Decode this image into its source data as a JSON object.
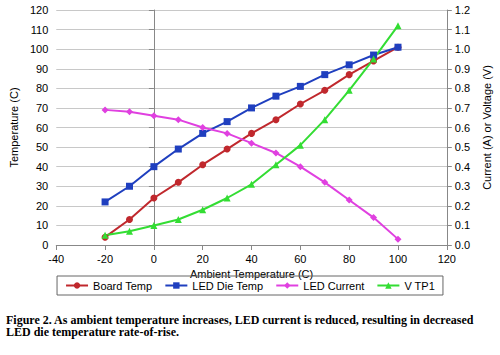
{
  "chart_data": {
    "type": "line",
    "x_label": "Ambient Temperature (C)",
    "y_label": "Temperature (C)",
    "y2_label": "Current (A) or Voltage (V)",
    "annotations": [
      "Figure 2. As ambient temperature increases, LED current is reduced, resulting in decreased LED die temperature rate-of-rise."
    ],
    "x": [
      -20,
      -10,
      0,
      10,
      20,
      30,
      40,
      50,
      60,
      70,
      80,
      90,
      100
    ],
    "series": [
      {
        "name": "Board Temp",
        "color": "#c0282d",
        "marker": "circle",
        "axis": "y",
        "values": [
          4,
          13,
          24,
          32,
          41,
          49,
          57,
          64,
          72,
          79,
          87,
          94,
          101
        ]
      },
      {
        "name": "LED Die Temp",
        "color": "#1f3fbf",
        "marker": "square",
        "axis": "y",
        "values": [
          22,
          30,
          40,
          49,
          57,
          63,
          70,
          76,
          81,
          87,
          92,
          97,
          101
        ]
      },
      {
        "name": "LED Current",
        "color": "#e040e0",
        "marker": "diamond",
        "axis": "y2",
        "values": [
          0.69,
          0.68,
          0.66,
          0.64,
          0.6,
          0.57,
          0.52,
          0.47,
          0.4,
          0.32,
          0.23,
          0.14,
          0.03
        ]
      },
      {
        "name": "V TP1",
        "color": "#33dd33",
        "marker": "triangle",
        "axis": "y2",
        "values": [
          0.05,
          0.07,
          0.1,
          0.13,
          0.18,
          0.24,
          0.31,
          0.41,
          0.51,
          0.64,
          0.79,
          0.95,
          1.12
        ]
      }
    ],
    "xlim": [
      -40,
      120
    ],
    "xticks": [
      -40,
      -20,
      0,
      20,
      40,
      60,
      80,
      100,
      120
    ],
    "ylim": [
      0,
      120
    ],
    "yticks": [
      0,
      10,
      20,
      30,
      40,
      50,
      60,
      70,
      80,
      90,
      100,
      110,
      120
    ],
    "y2lim": [
      0,
      1.2
    ],
    "y2ticks": [
      {
        "value": 0,
        "label": "0.0"
      },
      0.1,
      0.2,
      0.3,
      0.4,
      0.5,
      0.6,
      0.7,
      0.8,
      0.9,
      {
        "value": 1,
        "label": "1.0"
      },
      1.1,
      1.2
    ],
    "grid": true,
    "legend": "bottom"
  }
}
